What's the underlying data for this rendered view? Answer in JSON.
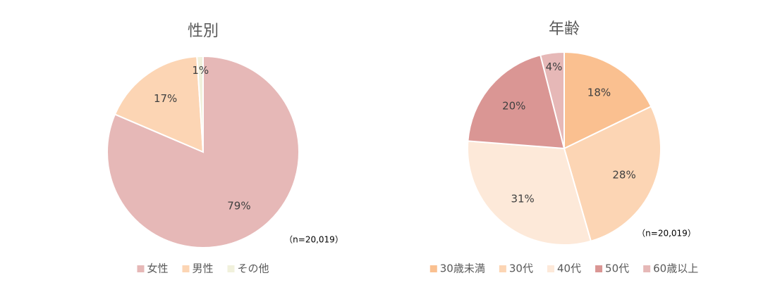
{
  "chart_data": [
    {
      "type": "pie",
      "title": "性別",
      "categories": [
        "女性",
        "男性",
        "その他"
      ],
      "values": [
        79,
        17,
        1
      ],
      "value_labels": [
        "79%",
        "17%",
        "1%"
      ],
      "colors": [
        "#e6b8b7",
        "#fcd5b4",
        "#f1f1dc"
      ],
      "annotation": "（n=20,019）",
      "legend": "bottom"
    },
    {
      "type": "pie",
      "title": "年齢",
      "categories": [
        "30歳未満",
        "30代",
        "40代",
        "50代",
        "60歳以上"
      ],
      "values": [
        18,
        28,
        31,
        20,
        4
      ],
      "value_labels": [
        "18%",
        "28%",
        "31%",
        "20%",
        "4%"
      ],
      "colors": [
        "#fac090",
        "#fcd5b4",
        "#fde9d9",
        "#da9694",
        "#e6b8b7"
      ],
      "annotation": "（n=20,019）",
      "legend": "bottom"
    }
  ]
}
